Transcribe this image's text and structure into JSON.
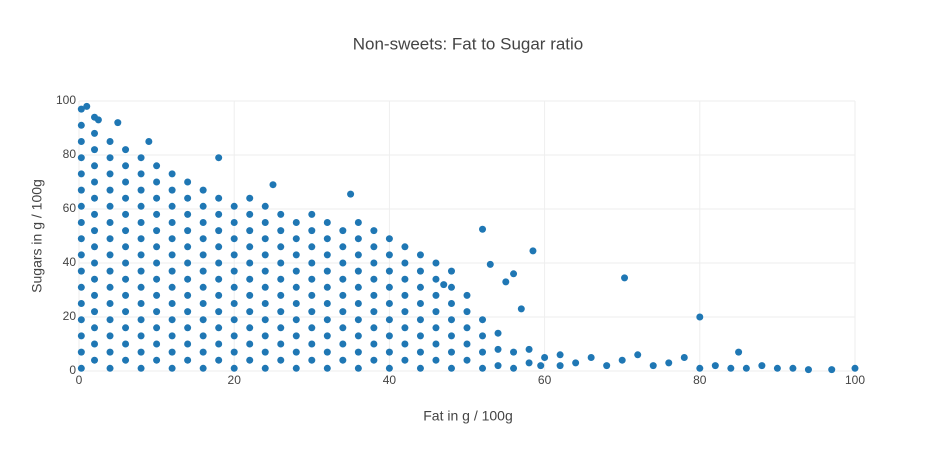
{
  "chart_data": {
    "type": "scatter",
    "title": "Non-sweets: Fat to Sugar ratio",
    "x_label": "Fat in g / 100g",
    "y_label": "Sugars in g / 100g",
    "color": "#1f77b4",
    "grid": true,
    "xlim": [
      0,
      100
    ],
    "ylim": [
      0,
      100
    ],
    "xticks": [
      0,
      20,
      40,
      60,
      80,
      100
    ],
    "yticks": [
      0,
      20,
      40,
      60,
      80,
      100
    ],
    "x": [
      0.3,
      0.3,
      0.3,
      0.3,
      0.3,
      0.3,
      0.3,
      0.3,
      0.3,
      0.3,
      0.3,
      0.3,
      0.3,
      0.3,
      0.3,
      0.3,
      0.3,
      2,
      2,
      2,
      2,
      2,
      2,
      2,
      2,
      2,
      2,
      2,
      2,
      2,
      2,
      2,
      2,
      4,
      4,
      4,
      4,
      4,
      4,
      4,
      4,
      4,
      4,
      4,
      4,
      4,
      4,
      4,
      6,
      6,
      6,
      6,
      6,
      6,
      6,
      6,
      6,
      6,
      6,
      6,
      6,
      6,
      8,
      8,
      8,
      8,
      8,
      8,
      8,
      8,
      8,
      8,
      8,
      8,
      8,
      8,
      10,
      10,
      10,
      10,
      10,
      10,
      10,
      10,
      10,
      10,
      10,
      10,
      10,
      12,
      12,
      12,
      12,
      12,
      12,
      12,
      12,
      12,
      12,
      12,
      12,
      12,
      14,
      14,
      14,
      14,
      14,
      14,
      14,
      14,
      14,
      14,
      14,
      14,
      16,
      16,
      16,
      16,
      16,
      16,
      16,
      16,
      16,
      16,
      16,
      16,
      18,
      18,
      18,
      18,
      18,
      18,
      18,
      18,
      18,
      18,
      18,
      20,
      20,
      20,
      20,
      20,
      20,
      20,
      20,
      20,
      20,
      20,
      22,
      22,
      22,
      22,
      22,
      22,
      22,
      22,
      22,
      22,
      22,
      24,
      24,
      24,
      24,
      24,
      24,
      24,
      24,
      24,
      24,
      24,
      26,
      26,
      26,
      26,
      26,
      26,
      26,
      26,
      26,
      26,
      28,
      28,
      28,
      28,
      28,
      28,
      28,
      28,
      28,
      28,
      30,
      30,
      30,
      30,
      30,
      30,
      30,
      30,
      30,
      30,
      32,
      32,
      32,
      32,
      32,
      32,
      32,
      32,
      32,
      32,
      34,
      34,
      34,
      34,
      34,
      34,
      34,
      34,
      34,
      36,
      36,
      36,
      36,
      36,
      36,
      36,
      36,
      36,
      36,
      38,
      38,
      38,
      38,
      38,
      38,
      38,
      38,
      38,
      40,
      40,
      40,
      40,
      40,
      40,
      40,
      40,
      40,
      42,
      42,
      42,
      42,
      42,
      42,
      42,
      42,
      44,
      44,
      44,
      44,
      44,
      44,
      44,
      44,
      46,
      46,
      46,
      46,
      46,
      46,
      46,
      48,
      48,
      48,
      48,
      48,
      48,
      48,
      50,
      50,
      50,
      50,
      50,
      52,
      52,
      52,
      52,
      54,
      54,
      54,
      56,
      56,
      58,
      58,
      60,
      62,
      62,
      64,
      66,
      68,
      70,
      72,
      74,
      76,
      78,
      80,
      82,
      84,
      86,
      88,
      90,
      92,
      94,
      97,
      100,
      52,
      53,
      58.5,
      70.3,
      80,
      56,
      57,
      47,
      55,
      59.5,
      85,
      35,
      1,
      2.5,
      5,
      9,
      18,
      25
    ],
    "y": [
      1,
      7,
      13,
      19,
      25,
      31,
      37,
      43,
      49,
      55,
      61,
      67,
      73,
      79,
      85,
      91,
      97,
      4,
      10,
      16,
      22,
      28,
      34,
      40,
      46,
      52,
      58,
      64,
      70,
      76,
      82,
      88,
      94,
      1,
      7,
      13,
      19,
      25,
      31,
      37,
      43,
      49,
      55,
      61,
      67,
      73,
      79,
      85,
      4,
      10,
      16,
      22,
      28,
      34,
      40,
      46,
      52,
      58,
      64,
      70,
      76,
      82,
      1,
      7,
      13,
      19,
      25,
      31,
      37,
      43,
      49,
      55,
      61,
      67,
      73,
      79,
      4,
      10,
      16,
      22,
      28,
      34,
      40,
      46,
      52,
      58,
      64,
      70,
      76,
      1,
      7,
      13,
      19,
      25,
      31,
      37,
      43,
      49,
      55,
      61,
      67,
      73,
      4,
      10,
      16,
      22,
      28,
      34,
      40,
      46,
      52,
      58,
      64,
      70,
      1,
      7,
      13,
      19,
      25,
      31,
      37,
      43,
      49,
      55,
      61,
      67,
      4,
      10,
      16,
      22,
      28,
      34,
      40,
      46,
      52,
      58,
      64,
      1,
      7,
      13,
      19,
      25,
      31,
      37,
      43,
      49,
      55,
      61,
      4,
      10,
      16,
      22,
      28,
      34,
      40,
      46,
      52,
      58,
      64,
      1,
      7,
      13,
      19,
      25,
      31,
      37,
      43,
      49,
      55,
      61,
      4,
      10,
      16,
      22,
      28,
      34,
      40,
      46,
      52,
      58,
      1,
      7,
      13,
      19,
      25,
      31,
      37,
      43,
      49,
      55,
      4,
      10,
      16,
      22,
      28,
      34,
      40,
      46,
      52,
      58,
      1,
      7,
      13,
      19,
      25,
      31,
      37,
      43,
      49,
      55,
      4,
      10,
      16,
      22,
      28,
      34,
      40,
      46,
      52,
      1,
      7,
      13,
      19,
      25,
      31,
      37,
      43,
      49,
      55,
      4,
      10,
      16,
      22,
      28,
      34,
      40,
      46,
      52,
      1,
      7,
      13,
      19,
      25,
      31,
      37,
      43,
      49,
      4,
      10,
      16,
      22,
      28,
      34,
      40,
      46,
      1,
      7,
      13,
      19,
      25,
      31,
      37,
      43,
      4,
      10,
      16,
      22,
      28,
      34,
      40,
      1,
      7,
      13,
      19,
      25,
      31,
      37,
      4,
      10,
      16,
      22,
      28,
      1,
      7,
      13,
      19,
      2,
      8,
      14,
      1,
      7,
      3,
      8,
      5,
      2,
      6,
      3,
      5,
      2,
      4,
      6,
      2,
      3,
      5,
      1,
      2,
      1,
      1,
      2,
      1,
      1,
      0.5,
      0.5,
      1,
      52.5,
      39.5,
      44.5,
      34.5,
      20,
      36,
      23,
      32,
      33,
      2,
      7,
      65.5,
      98,
      93,
      92,
      85,
      79,
      69
    ]
  }
}
